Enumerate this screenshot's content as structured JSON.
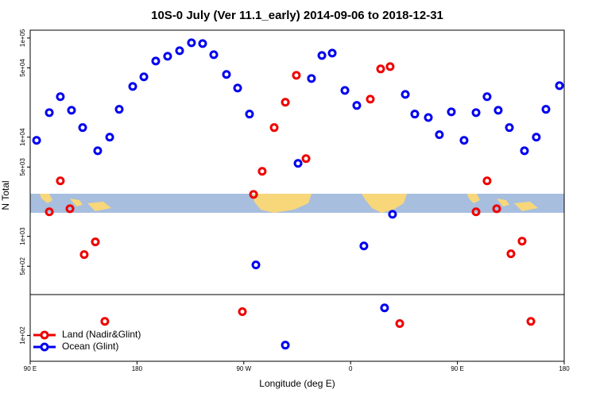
{
  "chart_data": {
    "type": "scatter",
    "title": "10S-0 July (Ver 11.1_early)   2014-09-06 to 2018-12-31",
    "x_label": "Longitude (deg E)",
    "y_label": "N Total",
    "y_log": true,
    "legend": "lower left",
    "xlim": [
      90,
      540
    ],
    "xticks": [
      {
        "value": 90,
        "label": "90 E"
      },
      180,
      {
        "value": 270,
        "label": "90 W"
      },
      {
        "value": 360,
        "label": "0"
      },
      {
        "value": 450,
        "label": "90 E"
      },
      {
        "value": 540,
        "label": "180"
      }
    ],
    "ylim": [
      55,
      120000
    ],
    "yticks": [
      {
        "value": 100000,
        "label": "1e+05"
      },
      {
        "value": 50000,
        "label": "5e+04"
      },
      {
        "value": 10000,
        "label": "1e+04"
      },
      {
        "value": 5000,
        "label": "5e+03"
      },
      {
        "value": 1000,
        "label": "1e+03"
      },
      {
        "value": 500,
        "label": "5e+02"
      },
      {
        "value": 100,
        "label": "1e+02"
      }
    ],
    "series": [
      {
        "name": "Land (Nadir&Glint)",
        "color": "#ee0000",
        "x": [
          106.1,
          115.4,
          123.5,
          135.5,
          144.9,
          152.9,
          268.8,
          278.2,
          285.5,
          295.6,
          305.0,
          314.3,
          322.4,
          376.6,
          385.3,
          393.3,
          401.4,
          465.7,
          475.0,
          483.1,
          495.1,
          504.5,
          511.9
        ],
        "values": [
          1770,
          3630,
          1900,
          655,
          880,
          139,
          174,
          2650,
          4530,
          12500,
          22500,
          42100,
          6080,
          24200,
          48800,
          51500,
          132,
          1770,
          3630,
          1900,
          667,
          895,
          139
        ]
      },
      {
        "name": "Ocean (Glint)",
        "color": "#0000ee",
        "x": [
          95.4,
          106.1,
          115.4,
          124.8,
          134.2,
          146.9,
          157.0,
          165.0,
          176.4,
          185.8,
          195.8,
          205.8,
          215.9,
          225.9,
          235.3,
          244.7,
          255.4,
          264.8,
          274.8,
          280.2,
          305.0,
          315.7,
          327.0,
          335.8,
          344.5,
          355.2,
          365.2,
          371.2,
          388.6,
          395.3,
          406.1,
          414.1,
          425.5,
          434.8,
          444.9,
          455.6,
          465.7,
          475.0,
          484.4,
          493.8,
          506.5,
          516.5,
          524.6,
          536.0
        ],
        "values": [
          9300,
          17700,
          25600,
          18700,
          12500,
          7300,
          10000,
          19100,
          32500,
          40600,
          58600,
          65500,
          74500,
          89500,
          87900,
          67900,
          42900,
          31300,
          17100,
          515,
          80,
          5450,
          39100,
          66700,
          70500,
          29600,
          20900,
          800,
          190,
          1670,
          27000,
          17100,
          15800,
          10600,
          18000,
          9300,
          17700,
          25600,
          18700,
          12500,
          7300,
          10000,
          19100,
          33100
        ]
      }
    ]
  }
}
